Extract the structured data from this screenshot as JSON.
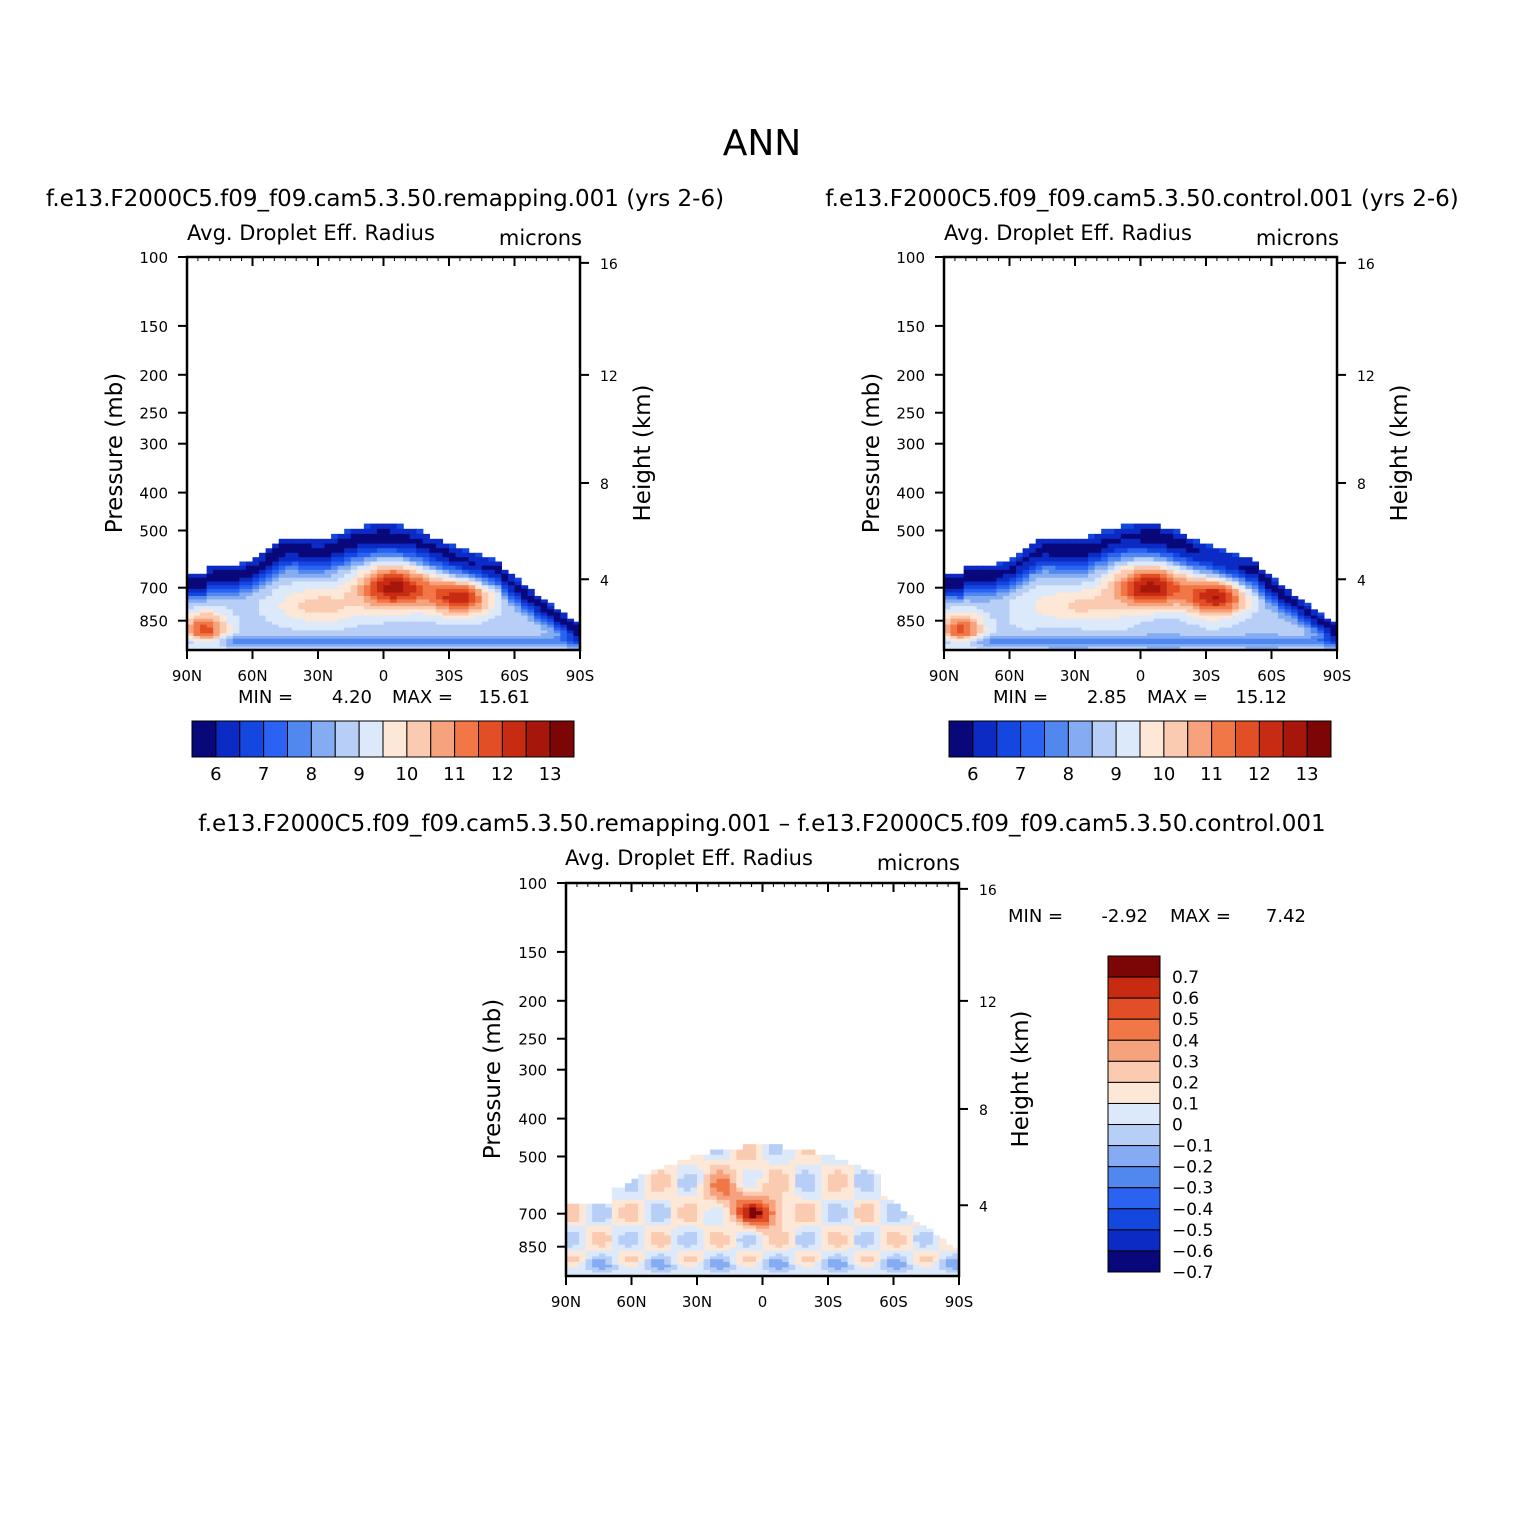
{
  "page_title": "ANN",
  "colors": {
    "ramp12": [
      "#08087a",
      "#0b2bc4",
      "#1446e0",
      "#2a62f2",
      "#5088f0",
      "#85acf2",
      "#b7cef7",
      "#dce9fb",
      "#fde7d6",
      "#fbcbb1",
      "#f6a27d",
      "#f27747",
      "#e24f27",
      "#c72b12",
      "#a6160a",
      "#7c0606"
    ],
    "diff": [
      "#08087a",
      "#0b2bc4",
      "#1446e0",
      "#2a62f2",
      "#5088f0",
      "#85acf2",
      "#b7cef7",
      "#dce9fb",
      "#fde7d6",
      "#fbcbb1",
      "#f6a27d",
      "#f27747",
      "#e24f27",
      "#c72b12",
      "#7c0606"
    ]
  },
  "chart_data": [
    {
      "type": "heatmap",
      "title": "f.e13.F2000C5.f09_f09.cam5.3.50.remapping.001  (yrs 2-6)",
      "left_label": "Avg. Droplet Eff. Radius",
      "right_label": "microns",
      "ylabel": "Pressure (mb)",
      "ylabel_right": "Height (km)",
      "x_ticks": [
        "90N",
        "60N",
        "30N",
        "0",
        "30S",
        "60S",
        "90S"
      ],
      "y_ticks": [
        "100",
        "150",
        "200",
        "250",
        "300",
        "400",
        "500",
        "700",
        "850"
      ],
      "y_right_ticks": [
        "16",
        "12",
        "8",
        "4"
      ],
      "min_label": "MIN =",
      "min_value": "4.20",
      "max_label": "MAX =",
      "max_value": "15.61",
      "colorbar_labels": [
        "6",
        "7",
        "8",
        "9",
        "10",
        "11",
        "12",
        "13"
      ]
    },
    {
      "type": "heatmap",
      "title": "f.e13.F2000C5.f09_f09.cam5.3.50.control.001  (yrs 2-6)",
      "left_label": "Avg. Droplet Eff. Radius",
      "right_label": "microns",
      "ylabel": "Pressure (mb)",
      "ylabel_right": "Height (km)",
      "x_ticks": [
        "90N",
        "60N",
        "30N",
        "0",
        "30S",
        "60S",
        "90S"
      ],
      "y_ticks": [
        "100",
        "150",
        "200",
        "250",
        "300",
        "400",
        "500",
        "700",
        "850"
      ],
      "y_right_ticks": [
        "16",
        "12",
        "8",
        "4"
      ],
      "min_label": "MIN =",
      "min_value": "2.85",
      "max_label": "MAX =",
      "max_value": "15.12",
      "colorbar_labels": [
        "6",
        "7",
        "8",
        "9",
        "10",
        "11",
        "12",
        "13"
      ]
    },
    {
      "type": "heatmap",
      "title": "f.e13.F2000C5.f09_f09.cam5.3.50.remapping.001 – f.e13.F2000C5.f09_f09.cam5.3.50.control.001",
      "left_label": "Avg. Droplet Eff. Radius",
      "right_label": "microns",
      "ylabel": "Pressure (mb)",
      "ylabel_right": "Height (km)",
      "x_ticks": [
        "90N",
        "60N",
        "30N",
        "0",
        "30S",
        "60S",
        "90S"
      ],
      "y_ticks": [
        "100",
        "150",
        "200",
        "250",
        "300",
        "400",
        "500",
        "700",
        "850"
      ],
      "y_right_ticks": [
        "16",
        "12",
        "8",
        "4"
      ],
      "min_label": "MIN =",
      "min_value": "-2.92",
      "max_label": "MAX =",
      "max_value": "7.42",
      "colorbar_labels": [
        "0.7",
        "0.6",
        "0.5",
        "0.4",
        "0.3",
        "0.2",
        "0.1",
        "0",
        "-0.1",
        "-0.2",
        "-0.3",
        "-0.4",
        "-0.5",
        "-0.6",
        "-0.7"
      ]
    }
  ]
}
